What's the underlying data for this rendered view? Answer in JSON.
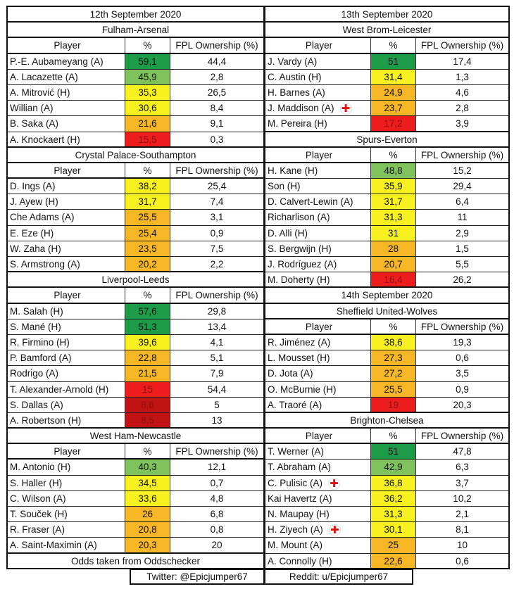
{
  "colors": {
    "dg": "#1e9b48",
    "lg": "#80c35c",
    "y": "#f7f21f",
    "o": "#f6b626",
    "r": "#ee1d1d",
    "dr": "#c01414"
  },
  "headers": {
    "player": "Player",
    "pct": "%",
    "fpl": "FPL Ownership (%)"
  },
  "left": [
    {
      "date": "12th September 2020"
    },
    {
      "match": "Fulham-Arsenal",
      "players": [
        [
          "P.-E. Aubameyang (A)",
          "59,1",
          "44,4",
          "dg",
          false
        ],
        [
          "A. Lacazette (A)",
          "45,9",
          "2,8",
          "lg",
          false
        ],
        [
          "A. Mitrović (H)",
          "35,3",
          "26,5",
          "y",
          false
        ],
        [
          "Willian (A)",
          "30,6",
          "8,4",
          "y",
          false
        ],
        [
          "B. Saka (A)",
          "21,6",
          "9,1",
          "o",
          false
        ],
        [
          "A. Knockaert (H)",
          "15,5",
          "0,3",
          "r",
          false
        ]
      ]
    },
    {
      "match": "Crystal Palace-Southampton",
      "players": [
        [
          "D. Ings (A)",
          "38,2",
          "25,4",
          "y",
          false
        ],
        [
          "J. Ayew (H)",
          "31,7",
          "7,4",
          "y",
          false
        ],
        [
          "Che Adams (A)",
          "25,5",
          "3,1",
          "o",
          false
        ],
        [
          "E. Eze (H)",
          "25,4",
          "0,9",
          "o",
          false
        ],
        [
          "W. Zaha (H)",
          "23,5",
          "7,5",
          "o",
          false
        ],
        [
          "S. Armstrong (A)",
          "20,2",
          "2,2",
          "o",
          false
        ]
      ]
    },
    {
      "match": "Liverpool-Leeds",
      "players": [
        [
          "M. Salah (H)",
          "57,6",
          "29,8",
          "dg",
          false
        ],
        [
          "S. Mané (H)",
          "51,3",
          "13,4",
          "dg",
          false
        ],
        [
          "R. Firmino (H)",
          "39,6",
          "4,1",
          "y",
          false
        ],
        [
          "P. Bamford (A)",
          "22,8",
          "5,1",
          "o",
          false
        ],
        [
          "Rodrigo (A)",
          "21,5",
          "7,9",
          "o",
          false
        ],
        [
          "T. Alexander-Arnold (H)",
          "15",
          "54,4",
          "r",
          false
        ],
        [
          "S. Dallas (A)",
          "8,6",
          "5",
          "dr",
          false
        ],
        [
          "A. Robertson (H)",
          "8,5",
          "13",
          "dr",
          false
        ]
      ]
    },
    {
      "match": "West Ham-Newcastle",
      "players": [
        [
          "M. Antonio (H)",
          "40,3",
          "12,1",
          "lg",
          false
        ],
        [
          "S. Haller (H)",
          "34,5",
          "0,7",
          "y",
          false
        ],
        [
          "C. Wilson (A)",
          "33,6",
          "4,8",
          "y",
          false
        ],
        [
          "T. Souček (H)",
          "26",
          "6,8",
          "o",
          false
        ],
        [
          "R. Fraser (A)",
          "20,8",
          "0,8",
          "o",
          false
        ],
        [
          "A. Saint-Maximin (A)",
          "20,3",
          "20",
          "o",
          false
        ]
      ]
    },
    {
      "note": "Odds taken from Oddschecker"
    }
  ],
  "right": [
    {
      "date": "13th September 2020"
    },
    {
      "match": "West Brom-Leicester",
      "players": [
        [
          "J. Vardy (A)",
          "51",
          "17,4",
          "dg",
          false
        ],
        [
          "C. Austin (H)",
          "31,4",
          "1,3",
          "y",
          false
        ],
        [
          "H. Barnes (A)",
          "24,9",
          "4,6",
          "o",
          false
        ],
        [
          "J. Maddison (A)",
          "23,7",
          "2,8",
          "o",
          true
        ],
        [
          "M. Pereira (H)",
          "17,2",
          "3,9",
          "r",
          false
        ]
      ]
    },
    {
      "match": "Spurs-Everton",
      "players": [
        [
          "H. Kane (H)",
          "48,8",
          "15,2",
          "lg",
          false
        ],
        [
          "Son (H)",
          "35,9",
          "29,4",
          "y",
          false
        ],
        [
          "D. Calvert-Lewin (A)",
          "31,7",
          "6,4",
          "y",
          false
        ],
        [
          "Richarlison (A)",
          "31,3",
          "11",
          "y",
          false
        ],
        [
          "D. Alli (H)",
          "31",
          "2,9",
          "y",
          false
        ],
        [
          "S. Bergwijn (H)",
          "28",
          "1,5",
          "o",
          false
        ],
        [
          "J. Rodríguez (A)",
          "20,7",
          "5,5",
          "o",
          false
        ],
        [
          "M. Doherty (H)",
          "16,4",
          "26,2",
          "r",
          false
        ]
      ]
    },
    {
      "date": "14th September 2020"
    },
    {
      "match": "Sheffield United-Wolves",
      "players": [
        [
          "R. Jiménez (A)",
          "38,6",
          "19,3",
          "y",
          false
        ],
        [
          "L. Mousset (H)",
          "27,3",
          "0,6",
          "o",
          false
        ],
        [
          "D. Jota (A)",
          "27,2",
          "3,5",
          "o",
          false
        ],
        [
          "O. McBurnie (H)",
          "25,5",
          "0,9",
          "o",
          false
        ],
        [
          "A. Traoré (A)",
          "19",
          "20,3",
          "r",
          false
        ]
      ]
    },
    {
      "match": "Brighton-Chelsea",
      "players": [
        [
          "T. Werner (A)",
          "51",
          "47,8",
          "dg",
          false
        ],
        [
          "T. Abraham (A)",
          "42,9",
          "6,3",
          "lg",
          false
        ],
        [
          "C. Pulisic (A)",
          "36,8",
          "3,7",
          "y",
          true
        ],
        [
          "Kai Havertz (A)",
          "36,2",
          "10,2",
          "y",
          false
        ],
        [
          "N. Maupay (H)",
          "31,3",
          "2,1",
          "y",
          false
        ],
        [
          "H. Ziyech (A)",
          "30,1",
          "8,1",
          "y",
          true
        ],
        [
          "M. Mount (A)",
          "25",
          "10",
          "o",
          false
        ],
        [
          "A. Connolly (H)",
          "22,6",
          "0,6",
          "o",
          false
        ]
      ]
    }
  ],
  "footer": {
    "twitter": "Twitter: @Epicjumper67",
    "reddit": "Reddit: u/Epicjumper67"
  }
}
